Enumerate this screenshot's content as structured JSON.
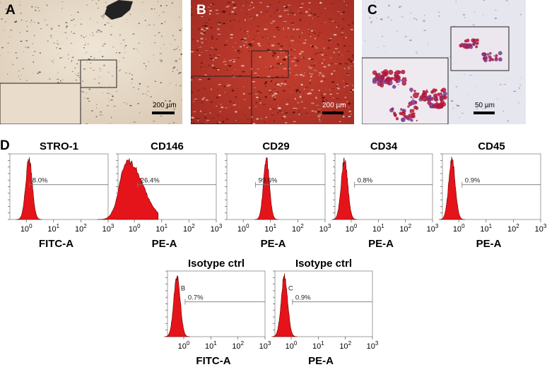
{
  "panels": {
    "A": {
      "label": "A",
      "scale": "200 µm"
    },
    "B": {
      "label": "B",
      "scale": "200 µm"
    },
    "C": {
      "label": "C",
      "scale": "50 µm"
    },
    "D": {
      "label": "D"
    }
  },
  "colors": {
    "histogram_fill": "#e5141a",
    "alizarin_red": "#b8322a",
    "oil_red_stain": "#b3163a"
  },
  "chart_data": [
    {
      "type": "histogram",
      "title": "STRO-1",
      "xlabel": "FITC-A",
      "x_scale": "log",
      "x_ticks": [
        "10^0",
        "10^1",
        "10^2",
        "10^3"
      ],
      "gate_label": "8.0%",
      "peak_log": 0.1,
      "width_log": 0.12
    },
    {
      "type": "histogram",
      "title": "CD146",
      "xlabel": "PE-A",
      "x_scale": "log",
      "x_ticks": [
        "10^0",
        "10^1",
        "10^2",
        "10^3"
      ],
      "gate_label": "26.4%",
      "peak_log": -0.25,
      "width_log": 0.28
    },
    {
      "type": "histogram",
      "title": "CD29",
      "xlabel": "PE-A",
      "x_scale": "log",
      "x_ticks": [
        "10^0",
        "10^1",
        "10^2",
        "10^3"
      ],
      "gate_label": "99.5%",
      "peak_log": 0.85,
      "width_log": 0.11
    },
    {
      "type": "histogram",
      "title": "CD34",
      "xlabel": "PE-A",
      "x_scale": "log",
      "x_ticks": [
        "10^0",
        "10^1",
        "10^2",
        "10^3"
      ],
      "gate_label": "0.8%",
      "peak_log": -0.25,
      "width_log": 0.12
    },
    {
      "type": "histogram",
      "title": "CD45",
      "xlabel": "PE-A",
      "x_scale": "log",
      "x_ticks": [
        "10^0",
        "10^1",
        "10^2",
        "10^3"
      ],
      "gate_label": "0.9%",
      "peak_log": -0.25,
      "width_log": 0.12
    },
    {
      "type": "histogram",
      "title": "Isotype ctrl",
      "xlabel": "FITC-A",
      "x_scale": "log",
      "x_ticks": [
        "10^0",
        "10^1",
        "10^2",
        "10^3"
      ],
      "gate_name": "B",
      "gate_label": "0.7%",
      "peak_log": -0.25,
      "width_log": 0.12
    },
    {
      "type": "histogram",
      "title": "Isotype ctrl",
      "xlabel": "PE-A",
      "x_scale": "log",
      "x_ticks": [
        "10^0",
        "10^1",
        "10^2",
        "10^3"
      ],
      "gate_name": "C",
      "gate_label": "0.9%",
      "peak_log": -0.25,
      "width_log": 0.12
    }
  ]
}
